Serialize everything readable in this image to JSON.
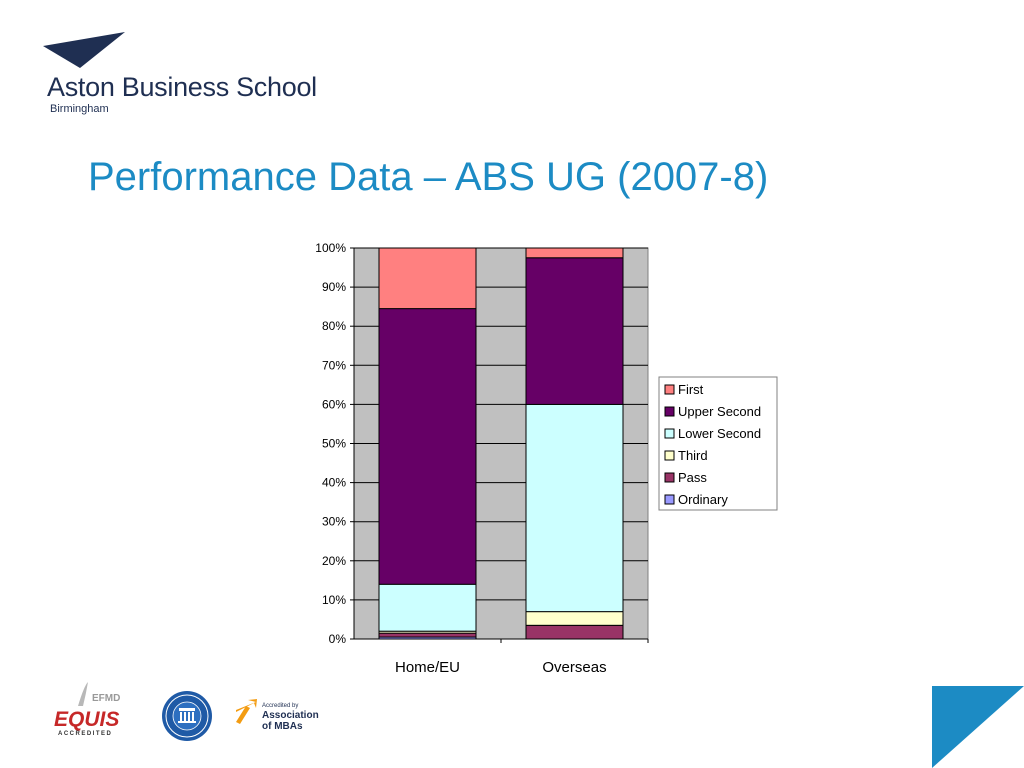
{
  "header": {
    "logo_name": "Aston Business School",
    "logo_city": "Birmingham",
    "title": "Performance Data – ABS UG (2007-8)"
  },
  "footer": {
    "equis_top": "EFMD",
    "equis_main": "EQUIS",
    "equis_sub": "ACCREDITED",
    "amba_line1": "Accredited by",
    "amba_line2": "Association",
    "amba_line3": "of MBAs"
  },
  "colors": {
    "brand_blue": "#1c8bc4",
    "navy": "#1f2f52",
    "plot_bg": "#c0c0c0"
  },
  "chart_data": {
    "type": "bar",
    "stacked": true,
    "percent": true,
    "categories": [
      "Home/EU",
      "Overseas"
    ],
    "series": [
      {
        "name": "Ordinary",
        "color": "#9999ff",
        "values": [
          0.5,
          0
        ]
      },
      {
        "name": "Pass",
        "color": "#993366",
        "values": [
          1.0,
          3.5
        ]
      },
      {
        "name": "Third",
        "color": "#ffffcc",
        "values": [
          0.5,
          3.5
        ]
      },
      {
        "name": "Lower Second",
        "color": "#ccffff",
        "values": [
          12.0,
          53.0
        ]
      },
      {
        "name": "Upper Second",
        "color": "#660066",
        "values": [
          70.5,
          37.5
        ]
      },
      {
        "name": "First",
        "color": "#ff8080",
        "values": [
          15.5,
          2.5
        ]
      }
    ],
    "ylim": [
      0,
      100
    ],
    "yticks": [
      "0%",
      "10%",
      "20%",
      "30%",
      "40%",
      "50%",
      "60%",
      "70%",
      "80%",
      "90%",
      "100%"
    ],
    "grid": true,
    "legend_position": "right"
  }
}
